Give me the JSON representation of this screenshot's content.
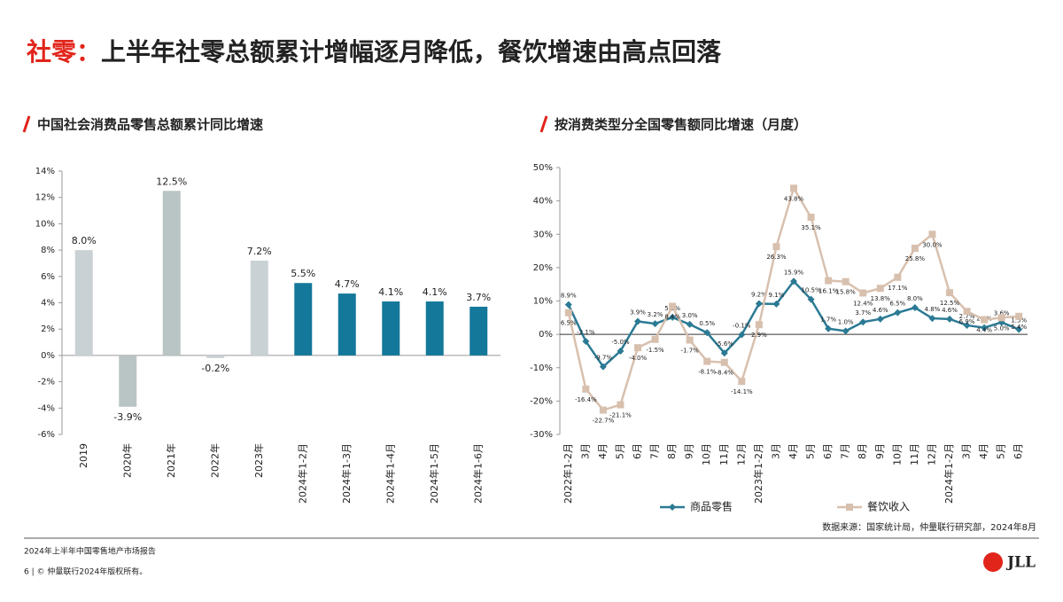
{
  "header": {
    "title_prefix": "社零：",
    "title": "上半年社零总额累计增幅逐月降低，餐饮增速由高点回落"
  },
  "chart_data": [
    {
      "type": "bar",
      "title": "中国社会消费品零售总额累计同比增速",
      "categories": [
        "2019",
        "2020年",
        "2021年",
        "2022年",
        "2023年",
        "2024年1-2月",
        "2024年1-3月",
        "2024年1-4月",
        "2024年1-5月",
        "2024年1-6月"
      ],
      "values": [
        8.0,
        -3.9,
        12.5,
        -0.2,
        7.2,
        5.5,
        4.7,
        4.1,
        4.1,
        3.7
      ],
      "value_labels": [
        "8.0%",
        "-3.9%",
        "12.5%",
        "-0.2%",
        "7.2%",
        "5.5%",
        "4.7%",
        "4.1%",
        "4.1%",
        "3.7%"
      ],
      "colors": [
        "#c9d1d5",
        "#b9c5c4",
        "#b9c5c4",
        "#c9d1d5",
        "#c9d1d5",
        "#14789a",
        "#14789a",
        "#14789a",
        "#14789a",
        "#14789a"
      ],
      "ylim": [
        -6,
        14
      ],
      "yticks": [
        {
          "value": -6,
          "label": "-6%"
        },
        {
          "value": -4,
          "label": "-4%"
        },
        {
          "value": -2,
          "label": "-2%"
        },
        {
          "value": 0,
          "label": "0%"
        },
        {
          "value": 2,
          "label": "2%"
        },
        {
          "value": 4,
          "label": "4%"
        },
        {
          "value": 6,
          "label": "6%"
        },
        {
          "value": 8,
          "label": "8%"
        },
        {
          "value": 10,
          "label": "10%"
        },
        {
          "value": 12,
          "label": "12%"
        },
        {
          "value": 14,
          "label": "14%"
        }
      ],
      "grid": false
    },
    {
      "type": "line",
      "title": "按消费类型分全国零售额同比增速（月度）",
      "categories": [
        "2022年1-2月",
        "3月",
        "4月",
        "5月",
        "6月",
        "7月",
        "8月",
        "9月",
        "10月",
        "11月",
        "12月",
        "2023年1-2月",
        "3月",
        "4月",
        "5月",
        "6月",
        "7月",
        "8月",
        "9月",
        "10月",
        "11月",
        "12月",
        "2024年1-2月",
        "3月",
        "4月",
        "5月",
        "6月"
      ],
      "series": [
        {
          "name": "商品零售",
          "color": "#2b7a94",
          "values": [
            8.9,
            -2.1,
            -9.7,
            -5.0,
            3.9,
            3.2,
            5.1,
            3.0,
            0.5,
            -5.6,
            -0.1,
            9.2,
            9.1,
            15.9,
            10.5,
            1.7,
            1.0,
            3.7,
            4.6,
            6.5,
            8.0,
            4.8,
            4.6,
            2.7,
            2.0,
            3.6,
            1.5
          ],
          "value_labels": [
            "8.9%",
            "-2.1%",
            "-9.7%",
            "-5.0%",
            "3.9%",
            "3.2%",
            "5.1%",
            "3.0%",
            "0.5%",
            "-5.6%",
            "-0.1%",
            "9.2%",
            "9.1%",
            "15.9%",
            "10.5%",
            "1.7%",
            "1.0%",
            "3.7%",
            "4.6%",
            "6.5%",
            "8.0%",
            "4.8%",
            "4.6%",
            "2.7%",
            "2.0%",
            "3.6%",
            "1.5%"
          ]
        },
        {
          "name": "餐饮收入",
          "color": "#d8c0ae",
          "values": [
            6.5,
            -16.4,
            -22.7,
            -21.1,
            -4.0,
            -1.5,
            8.4,
            -1.7,
            -8.1,
            -8.4,
            -14.1,
            2.9,
            26.3,
            43.8,
            35.1,
            16.1,
            15.8,
            12.4,
            13.8,
            17.1,
            25.8,
            30.0,
            12.5,
            6.9,
            4.4,
            5.0,
            5.4
          ],
          "value_labels": [
            "6.5%",
            "-16.4%",
            "-22.7%",
            "-21.1%",
            "-4.0%",
            "-1.5%",
            "8.4%",
            "-1.7%",
            "-8.1%",
            "-8.4%",
            "-14.1%",
            "2.9%",
            "26.3%",
            "43.8%",
            "35.1%",
            "16.1%",
            "15.8%",
            "12.4%",
            "13.8%",
            "17.1%",
            "25.8%",
            "30.0%",
            "12.5%",
            "6.9%",
            "4.4%",
            "5.0%",
            "5.4%"
          ]
        }
      ],
      "ylim": [
        -30,
        50
      ],
      "yticks": [
        {
          "value": -30,
          "label": "-30%"
        },
        {
          "value": -20,
          "label": "-20%"
        },
        {
          "value": -10,
          "label": "-10%"
        },
        {
          "value": 0,
          "label": "0%"
        },
        {
          "value": 10,
          "label": "10%"
        },
        {
          "value": 20,
          "label": "20%"
        },
        {
          "value": 30,
          "label": "30%"
        },
        {
          "value": 40,
          "label": "40%"
        },
        {
          "value": 50,
          "label": "50%"
        }
      ],
      "grid": false,
      "legend": "bottom",
      "source": "数据来源：国家统计局，仲量联行研究部，2024年8月"
    }
  ],
  "footer": {
    "report": "2024年上半年中国零售地产市场报告",
    "copyright": "6 | © 仲量联行2024年版权所有。",
    "logo": "JLL"
  }
}
